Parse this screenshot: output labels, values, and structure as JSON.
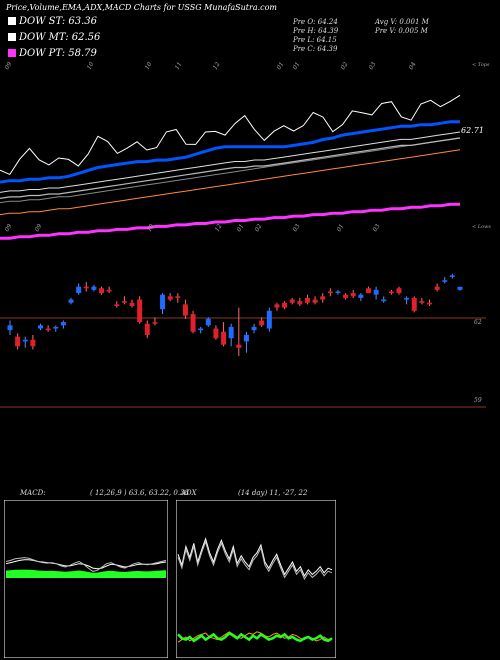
{
  "header": {
    "title": "Price,Volume,EMA,ADX,MACD Charts for USSG MunafaSutra.com",
    "legend": [
      {
        "label": "DOW ST: 63.36",
        "color": "#ffffff"
      },
      {
        "label": "DOW MT: 62.56",
        "color": "#ffffff"
      },
      {
        "label": "DOW PT: 58.79",
        "color": "#ff33ff"
      }
    ],
    "stats_left": [
      "Pre  O: 64.24",
      "Pre  H: 64.39",
      "Pre  L: 64.15",
      "Pre  C: 64.39"
    ],
    "stats_right": [
      "Avg V: 0.001 M",
      "Pre  V: 0.005 M"
    ]
  },
  "chart_data": [
    {
      "type": "candlestick",
      "name": "price",
      "top_month_labels": [
        "09",
        "10",
        "10",
        "11",
        "12",
        "01",
        "01",
        "02",
        "03",
        "04"
      ],
      "mid_month_labels": [
        "09",
        "09",
        "10",
        "12",
        "01",
        "02",
        "03",
        "01",
        "03"
      ],
      "right_labels": [
        "< Tops",
        "< Lows"
      ],
      "ema_value_label": "62.71",
      "y_labels": [
        "62",
        "59"
      ],
      "ylim": [
        55.5,
        66.8
      ],
      "candles": [
        [
          61.7,
          62.3,
          61.4,
          62.0
        ],
        [
          61.3,
          61.5,
          60.5,
          60.7
        ],
        [
          61.0,
          61.3,
          60.6,
          61.1
        ],
        [
          61.1,
          61.4,
          60.5,
          60.7
        ],
        [
          61.8,
          62.1,
          61.7,
          62.0
        ],
        [
          61.8,
          62.0,
          61.6,
          61.7
        ],
        [
          61.8,
          62.0,
          61.6,
          61.9
        ],
        [
          62.0,
          62.3,
          61.8,
          62.2
        ],
        [
          63.4,
          63.7,
          63.3,
          63.6
        ],
        [
          64.0,
          64.6,
          63.9,
          64.4
        ],
        [
          64.4,
          64.7,
          64.1,
          64.3
        ],
        [
          64.2,
          64.5,
          64.1,
          64.4
        ],
        [
          64.3,
          64.4,
          63.9,
          64.0
        ],
        [
          64.2,
          64.4,
          64.0,
          64.1
        ],
        [
          63.3,
          63.5,
          63.1,
          63.2
        ],
        [
          63.5,
          63.8,
          63.3,
          63.4
        ],
        [
          63.4,
          63.6,
          63.1,
          63.2
        ],
        [
          63.6,
          63.8,
          62.1,
          62.2
        ],
        [
          62.1,
          62.3,
          61.2,
          61.4
        ],
        [
          62.2,
          62.5,
          62.0,
          62.1
        ],
        [
          63.0,
          64.0,
          62.7,
          63.9
        ],
        [
          63.8,
          64.0,
          63.5,
          63.6
        ],
        [
          63.8,
          64.0,
          63.4,
          63.7
        ],
        [
          63.3,
          63.6,
          62.4,
          62.6
        ],
        [
          62.7,
          62.9,
          61.5,
          61.6
        ],
        [
          61.7,
          61.9,
          61.5,
          61.8
        ],
        [
          62.0,
          62.5,
          61.9,
          62.4
        ],
        [
          61.8,
          62.0,
          61.1,
          61.2
        ],
        [
          61.6,
          62.2,
          60.7,
          60.8
        ],
        [
          61.2,
          62.1,
          60.7,
          61.9
        ],
        [
          60.8,
          63.1,
          60.1,
          60.6
        ],
        [
          61.0,
          61.6,
          60.3,
          61.4
        ],
        [
          61.7,
          62.1,
          61.5,
          61.9
        ],
        [
          62.3,
          62.5,
          61.9,
          62.0
        ],
        [
          61.8,
          63.1,
          61.6,
          62.9
        ],
        [
          63.3,
          63.4,
          62.9,
          63.1
        ],
        [
          63.4,
          63.5,
          63.0,
          63.1
        ],
        [
          63.6,
          63.7,
          63.3,
          63.4
        ],
        [
          63.5,
          63.7,
          63.2,
          63.3
        ],
        [
          63.7,
          63.9,
          63.3,
          63.4
        ],
        [
          63.6,
          63.8,
          63.3,
          63.4
        ],
        [
          63.8,
          64.0,
          63.4,
          63.6
        ],
        [
          64.1,
          64.3,
          63.8,
          64.0
        ],
        [
          64.1,
          64.2,
          63.9,
          64.1
        ],
        [
          63.9,
          64.0,
          63.6,
          63.7
        ],
        [
          64.0,
          64.2,
          63.7,
          63.8
        ],
        [
          63.7,
          64.0,
          63.5,
          63.9
        ],
        [
          64.3,
          64.4,
          64.0,
          64.0
        ],
        [
          63.9,
          64.4,
          63.6,
          64.2
        ],
        [
          63.5,
          63.8,
          63.4,
          63.6
        ],
        [
          64.1,
          64.2,
          63.9,
          64.0
        ],
        [
          64.3,
          64.4,
          63.9,
          64.0
        ],
        [
          63.6,
          63.8,
          63.3,
          63.7
        ],
        [
          63.7,
          63.8,
          62.8,
          62.9
        ],
        [
          63.5,
          63.7,
          63.3,
          63.4
        ],
        [
          63.4,
          63.6,
          63.2,
          63.3
        ],
        [
          64.4,
          64.6,
          64.1,
          64.2
        ],
        [
          64.7,
          65.0,
          64.6,
          64.8
        ],
        [
          65.0,
          65.2,
          64.9,
          65.1
        ],
        [
          64.2,
          64.4,
          64.15,
          64.39
        ]
      ],
      "ema_short": [
        68.6,
        68.7,
        68.7,
        68.8,
        68.8,
        68.9,
        68.9,
        69.0,
        69.2,
        69.4,
        69.6,
        69.7,
        69.8,
        69.9,
        70.0,
        70.0,
        70.1,
        70.1,
        70.2,
        70.3,
        70.5,
        70.7,
        70.9,
        71.0,
        71.0,
        71.0,
        71.0,
        71.0,
        71.0,
        71.0,
        71.1,
        71.2,
        71.3,
        71.5,
        71.6,
        71.8,
        71.9,
        72.0,
        72.1,
        72.2,
        72.3,
        72.4,
        72.4,
        72.5,
        72.5,
        72.6,
        72.7,
        72.7
      ],
      "ema_mid": [
        67.5,
        67.6,
        67.6,
        67.7,
        67.7,
        67.8,
        67.8,
        67.9,
        68.0,
        68.1,
        68.2,
        68.3,
        68.4,
        68.5,
        68.6,
        68.7,
        68.8,
        68.9,
        69.0,
        69.1,
        69.2,
        69.3,
        69.4,
        69.5,
        69.6,
        69.6,
        69.7,
        69.7,
        69.8,
        69.9,
        70.0,
        70.1,
        70.2,
        70.3,
        70.4,
        70.5,
        70.6,
        70.7,
        70.8,
        70.9,
        71.0,
        71.1,
        71.1,
        71.2,
        71.3,
        71.4,
        71.5,
        71.6
      ],
      "ema_long": [
        66.4,
        66.5,
        66.5,
        66.6,
        66.6,
        66.7,
        66.8,
        66.8,
        66.9,
        67.0,
        67.1,
        67.2,
        67.3,
        67.4,
        67.5,
        67.6,
        67.7,
        67.8,
        67.9,
        68.0,
        68.1,
        68.2,
        68.3,
        68.4,
        68.5,
        68.6,
        68.7,
        68.8,
        68.9,
        69.0,
        69.1,
        69.2,
        69.3,
        69.4,
        69.5,
        69.6,
        69.7,
        69.8,
        69.9,
        70.0,
        70.1,
        70.2,
        70.3,
        70.4,
        70.5,
        70.6,
        70.7,
        70.8
      ],
      "ema_pt": [
        64.8,
        64.8,
        64.9,
        64.9,
        65.0,
        65.0,
        65.1,
        65.1,
        65.2,
        65.2,
        65.3,
        65.3,
        65.4,
        65.4,
        65.5,
        65.5,
        65.6,
        65.6,
        65.7,
        65.7,
        65.8,
        65.8,
        65.9,
        65.9,
        66.0,
        66.0,
        66.1,
        66.1,
        66.2,
        66.2,
        66.3,
        66.3,
        66.4,
        66.4,
        66.5,
        66.5,
        66.6,
        66.6,
        66.7,
        66.7,
        66.8,
        66.8,
        66.9,
        66.9,
        67.0,
        67.0,
        67.1,
        67.1
      ]
    },
    {
      "type": "line",
      "name": "MACD",
      "label": "MACD:",
      "params": "( 12,26,9 ) 63.6, 63.22, 0.38",
      "series": [
        {
          "name": "MACD",
          "values": [
            0.9,
            0.92,
            0.95,
            0.96,
            0.97,
            0.96,
            0.93,
            0.9,
            0.88,
            0.87,
            0.88,
            0.86,
            0.82,
            0.8,
            0.83,
            0.87,
            0.9,
            0.85,
            0.78,
            0.72,
            0.74,
            0.8,
            0.86,
            0.88,
            0.84,
            0.8,
            0.78,
            0.82,
            0.86,
            0.88,
            0.85,
            0.84,
            0.86,
            0.88,
            0.9,
            0.92
          ]
        },
        {
          "name": "Signal",
          "values": [
            0.86,
            0.88,
            0.9,
            0.92,
            0.93,
            0.93,
            0.92,
            0.9,
            0.89,
            0.88,
            0.87,
            0.86,
            0.84,
            0.82,
            0.82,
            0.84,
            0.86,
            0.85,
            0.82,
            0.78,
            0.77,
            0.78,
            0.82,
            0.85,
            0.84,
            0.82,
            0.8,
            0.81,
            0.83,
            0.85,
            0.85,
            0.85,
            0.85,
            0.86,
            0.88,
            0.89
          ]
        }
      ],
      "histogram": [
        0.5,
        0.52,
        0.55,
        0.55,
        0.56,
        0.55,
        0.53,
        0.5,
        0.48,
        0.47,
        0.48,
        0.46,
        0.44,
        0.42,
        0.44,
        0.47,
        0.5,
        0.46,
        0.4,
        0.35,
        0.36,
        0.42,
        0.46,
        0.48,
        0.45,
        0.42,
        0.4,
        0.43,
        0.46,
        0.47,
        0.45,
        0.44,
        0.46,
        0.48,
        0.5,
        0.52
      ]
    },
    {
      "type": "line",
      "name": "ADX",
      "label": "ADX",
      "params": "(14 day) 11, -27, 22",
      "series": [
        {
          "name": "ADX",
          "values": [
            35,
            28,
            40,
            33,
            42,
            30,
            38,
            45,
            36,
            30,
            38,
            44,
            37,
            32,
            40,
            29,
            34,
            30,
            27,
            33,
            36,
            41,
            30,
            26,
            31,
            35,
            28,
            22,
            26,
            30,
            24,
            27,
            21,
            25,
            22,
            24,
            27,
            23,
            26,
            25
          ]
        },
        {
          "name": "+DI",
          "values": [
            12,
            9,
            8,
            10,
            7,
            9,
            11,
            8,
            10,
            12,
            9,
            8,
            10,
            13,
            11,
            9,
            12,
            10,
            8,
            11,
            9,
            12,
            10,
            8,
            9,
            11,
            10,
            12,
            9,
            10,
            8,
            7,
            9,
            10,
            8,
            9,
            11,
            8,
            7,
            9
          ]
        },
        {
          "name": "-DI",
          "values": [
            6,
            8,
            10,
            7,
            9,
            11,
            12,
            13,
            10,
            9,
            8,
            10,
            12,
            14,
            12,
            10,
            9,
            11,
            13,
            12,
            14,
            13,
            11,
            10,
            12,
            13,
            11,
            9,
            10,
            12,
            11,
            9,
            8,
            10,
            9,
            7,
            8,
            10,
            8,
            9
          ]
        }
      ]
    }
  ],
  "colors": {
    "up": "#1e6bff",
    "down": "#e0202a",
    "macd_fill": "#22ff22",
    "ema_short": "#ffffff",
    "ema_mid": "#b8b8b8",
    "ema_long": "#ff8a3c",
    "ema_pt": "#ff33ff",
    "ema_blue": "#0055ff",
    "hline": "#8a3a1e",
    "di_plus": "#22ff22",
    "di_minus": "#ff9900"
  }
}
